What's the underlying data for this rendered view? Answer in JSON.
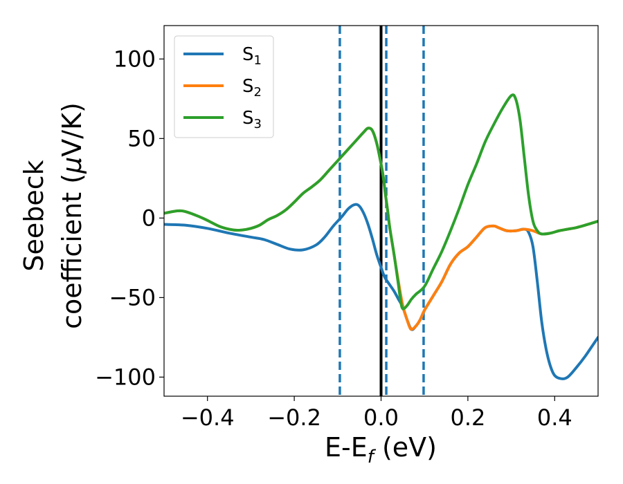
{
  "chart_data": {
    "type": "line",
    "title": "",
    "xlabel": "E-E",
    "xlabel_sub": "f",
    "xlabel_unit": " (eV)",
    "ylabel_line1": "Seebeck",
    "ylabel_line2": "coefficient  (",
    "ylabel_mu": "μ",
    "ylabel_unit": "V/K)",
    "xlim": [
      -0.5,
      0.5
    ],
    "ylim": [
      -112,
      121
    ],
    "xticks": [
      -0.4,
      -0.2,
      0.0,
      0.2,
      0.4
    ],
    "xtick_labels": [
      "−0.4",
      "−0.2",
      "0.0",
      "0.2",
      "0.4"
    ],
    "yticks": [
      100,
      50,
      0,
      -50,
      -100
    ],
    "ytick_labels": [
      "100",
      "50",
      "0",
      "−50",
      "−100"
    ],
    "grid": false,
    "legend_position": "top-left",
    "series": [
      {
        "name": "S",
        "sub": "1",
        "color": "#1f77b4",
        "points": [
          [
            -0.5,
            -4
          ],
          [
            -0.45,
            -4.5
          ],
          [
            -0.4,
            -6.5
          ],
          [
            -0.35,
            -9.5
          ],
          [
            -0.3,
            -12
          ],
          [
            -0.27,
            -13.5
          ],
          [
            -0.24,
            -16.5
          ],
          [
            -0.21,
            -19.5
          ],
          [
            -0.18,
            -20
          ],
          [
            -0.15,
            -17
          ],
          [
            -0.13,
            -12
          ],
          [
            -0.11,
            -5
          ],
          [
            -0.09,
            1
          ],
          [
            -0.075,
            6
          ],
          [
            -0.06,
            8.5
          ],
          [
            -0.05,
            7.5
          ],
          [
            -0.04,
            3
          ],
          [
            -0.03,
            -4
          ],
          [
            -0.02,
            -13
          ],
          [
            -0.01,
            -23
          ],
          [
            0.0,
            -31
          ],
          [
            0.005,
            -35
          ],
          [
            0.01,
            -38
          ],
          [
            0.02,
            -42
          ],
          [
            0.03,
            -46
          ],
          [
            0.04,
            -51
          ],
          [
            0.05,
            -56
          ],
          [
            0.06,
            -64
          ],
          [
            0.07,
            -70
          ],
          [
            0.08,
            -68
          ],
          [
            0.09,
            -64
          ],
          [
            0.1,
            -58
          ],
          [
            0.12,
            -49
          ],
          [
            0.14,
            -40
          ],
          [
            0.16,
            -29
          ],
          [
            0.18,
            -22
          ],
          [
            0.2,
            -18
          ],
          [
            0.22,
            -12
          ],
          [
            0.24,
            -6
          ],
          [
            0.26,
            -5
          ],
          [
            0.27,
            -6
          ],
          [
            0.29,
            -8
          ],
          [
            0.31,
            -8
          ],
          [
            0.33,
            -7
          ],
          [
            0.34,
            -9
          ],
          [
            0.35,
            -18
          ],
          [
            0.36,
            -40
          ],
          [
            0.37,
            -65
          ],
          [
            0.38,
            -82
          ],
          [
            0.39,
            -93
          ],
          [
            0.4,
            -99
          ],
          [
            0.415,
            -101
          ],
          [
            0.43,
            -100
          ],
          [
            0.45,
            -94
          ],
          [
            0.47,
            -87
          ],
          [
            0.49,
            -79
          ],
          [
            0.5,
            -75
          ]
        ]
      },
      {
        "name": "S",
        "sub": "2",
        "color": "#ff7f0e",
        "points": [
          [
            -0.5,
            3
          ],
          [
            -0.47,
            4.5
          ],
          [
            -0.45,
            4
          ],
          [
            -0.42,
            1
          ],
          [
            -0.4,
            -1.5
          ],
          [
            -0.37,
            -5.5
          ],
          [
            -0.34,
            -7.5
          ],
          [
            -0.32,
            -7.5
          ],
          [
            -0.3,
            -6.5
          ],
          [
            -0.28,
            -4.5
          ],
          [
            -0.26,
            -1
          ],
          [
            -0.24,
            1.5
          ],
          [
            -0.22,
            5
          ],
          [
            -0.2,
            10
          ],
          [
            -0.18,
            15.5
          ],
          [
            -0.16,
            19.5
          ],
          [
            -0.14,
            24
          ],
          [
            -0.12,
            30
          ],
          [
            -0.1,
            36
          ],
          [
            -0.08,
            42
          ],
          [
            -0.06,
            48
          ],
          [
            -0.04,
            54
          ],
          [
            -0.03,
            56.5
          ],
          [
            -0.02,
            55
          ],
          [
            -0.01,
            47
          ],
          [
            0.0,
            34
          ],
          [
            0.005,
            26
          ],
          [
            0.01,
            15
          ],
          [
            0.015,
            5
          ],
          [
            0.02,
            -6
          ],
          [
            0.03,
            -23
          ],
          [
            0.04,
            -40
          ],
          [
            0.05,
            -55
          ],
          [
            0.06,
            -64
          ],
          [
            0.065,
            -68
          ],
          [
            0.07,
            -70
          ],
          [
            0.08,
            -68
          ],
          [
            0.09,
            -64
          ],
          [
            0.1,
            -58
          ],
          [
            0.12,
            -49
          ],
          [
            0.14,
            -40
          ],
          [
            0.16,
            -29
          ],
          [
            0.18,
            -22
          ],
          [
            0.2,
            -18
          ],
          [
            0.22,
            -12
          ],
          [
            0.24,
            -6
          ],
          [
            0.26,
            -5
          ],
          [
            0.27,
            -6
          ],
          [
            0.29,
            -8
          ],
          [
            0.31,
            -8
          ],
          [
            0.33,
            -7
          ],
          [
            0.35,
            -8
          ],
          [
            0.37,
            -10
          ],
          [
            0.39,
            -9.5
          ],
          [
            0.41,
            -8
          ],
          [
            0.43,
            -7
          ],
          [
            0.45,
            -6
          ],
          [
            0.47,
            -4.5
          ],
          [
            0.5,
            -2
          ]
        ]
      },
      {
        "name": "S",
        "sub": "3",
        "color": "#2ca02c",
        "points": [
          [
            -0.5,
            3
          ],
          [
            -0.47,
            4.5
          ],
          [
            -0.45,
            4
          ],
          [
            -0.42,
            1
          ],
          [
            -0.4,
            -1.5
          ],
          [
            -0.37,
            -5.5
          ],
          [
            -0.34,
            -7.5
          ],
          [
            -0.32,
            -7.5
          ],
          [
            -0.3,
            -6.5
          ],
          [
            -0.28,
            -4.5
          ],
          [
            -0.26,
            -1
          ],
          [
            -0.24,
            1.5
          ],
          [
            -0.22,
            5
          ],
          [
            -0.2,
            10
          ],
          [
            -0.18,
            15.5
          ],
          [
            -0.16,
            19.5
          ],
          [
            -0.14,
            24
          ],
          [
            -0.12,
            30
          ],
          [
            -0.1,
            36
          ],
          [
            -0.08,
            42
          ],
          [
            -0.06,
            48
          ],
          [
            -0.04,
            54
          ],
          [
            -0.03,
            56.5
          ],
          [
            -0.02,
            55
          ],
          [
            -0.01,
            47
          ],
          [
            0.0,
            34
          ],
          [
            0.005,
            26
          ],
          [
            0.01,
            15
          ],
          [
            0.015,
            5
          ],
          [
            0.02,
            -6
          ],
          [
            0.03,
            -23
          ],
          [
            0.04,
            -42
          ],
          [
            0.045,
            -52
          ],
          [
            0.05,
            -57
          ],
          [
            0.06,
            -55
          ],
          [
            0.07,
            -51
          ],
          [
            0.08,
            -48
          ],
          [
            0.1,
            -43
          ],
          [
            0.12,
            -32
          ],
          [
            0.14,
            -21
          ],
          [
            0.16,
            -8
          ],
          [
            0.18,
            6
          ],
          [
            0.2,
            21
          ],
          [
            0.22,
            34
          ],
          [
            0.24,
            48
          ],
          [
            0.26,
            59
          ],
          [
            0.28,
            69
          ],
          [
            0.3,
            77
          ],
          [
            0.31,
            75
          ],
          [
            0.32,
            62
          ],
          [
            0.33,
            38
          ],
          [
            0.34,
            14
          ],
          [
            0.35,
            -2
          ],
          [
            0.36,
            -8
          ],
          [
            0.37,
            -10
          ],
          [
            0.39,
            -9.5
          ],
          [
            0.41,
            -8
          ],
          [
            0.43,
            -7
          ],
          [
            0.45,
            -6
          ],
          [
            0.47,
            -4.5
          ],
          [
            0.5,
            -2
          ]
        ]
      }
    ],
    "vlines": [
      {
        "x": -0.095,
        "style": "dashed",
        "color": "#1f77b4"
      },
      {
        "x": 0.012,
        "style": "dashed",
        "color": "#1f77b4"
      },
      {
        "x": 0.098,
        "style": "dashed",
        "color": "#1f77b4"
      },
      {
        "x": 0.0,
        "style": "solid",
        "color": "#000000"
      }
    ]
  }
}
